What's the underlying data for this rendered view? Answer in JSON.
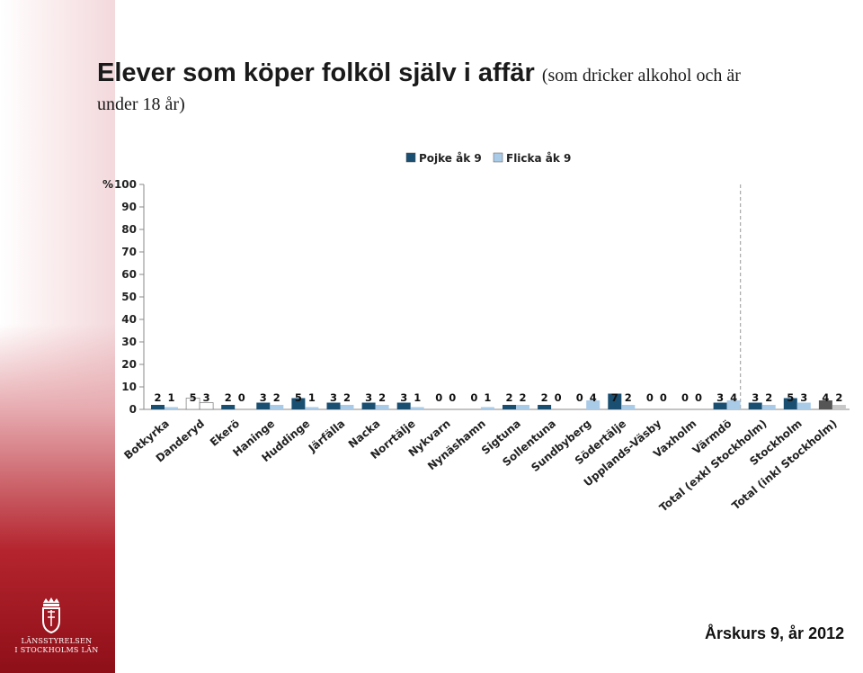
{
  "header": {
    "title": "Elever som köper folköl själv i affär",
    "subtitle_part1": "(som dricker alkohol och är",
    "subtitle_part2": "under 18 år)"
  },
  "footer": {
    "text": "Årskurs 9, år 2012"
  },
  "logo": {
    "line1": "LÄNSSTYRELSEN",
    "line2": "I STOCKHOLMS LÄN"
  },
  "colors": {
    "pojke": "#1b4f72",
    "flicka": "#a9cbe8",
    "highlight_pojke": "#ffffff",
    "highlight_flicka": "#ffffff",
    "total_pojke": "#555555",
    "total_flicka": "#c8c8c8",
    "axis": "#888888",
    "accent_red": "#b4242e"
  },
  "chart_data": {
    "type": "bar",
    "ylabel": "%",
    "ylim": [
      0,
      100
    ],
    "yticks": [
      0,
      10,
      20,
      30,
      40,
      50,
      60,
      70,
      80,
      90,
      100
    ],
    "legend_position": "top",
    "grid": false,
    "categories": [
      "Botkyrka",
      "Danderyd",
      "Ekerö",
      "Haninge",
      "Huddinge",
      "Järfälla",
      "Nacka",
      "Norrtälje",
      "Nykvarn",
      "Nynäshamn",
      "Sigtuna",
      "Sollentuna",
      "Sundbyberg",
      "Södertälje",
      "Upplands-Väsby",
      "Vaxholm",
      "Värmdö",
      "Total (exkl Stockholm)",
      "Stockholm",
      "Total (inkl Stockholm)"
    ],
    "series": [
      {
        "name": "Pojke åk 9",
        "values": [
          2,
          5,
          2,
          3,
          5,
          3,
          3,
          3,
          0,
          0,
          2,
          2,
          0,
          7,
          0,
          0,
          3,
          3,
          5,
          4
        ]
      },
      {
        "name": "Flicka åk 9",
        "values": [
          1,
          3,
          0,
          2,
          1,
          2,
          2,
          1,
          0,
          1,
          2,
          0,
          4,
          2,
          0,
          0,
          4,
          2,
          3,
          2
        ]
      }
    ]
  }
}
